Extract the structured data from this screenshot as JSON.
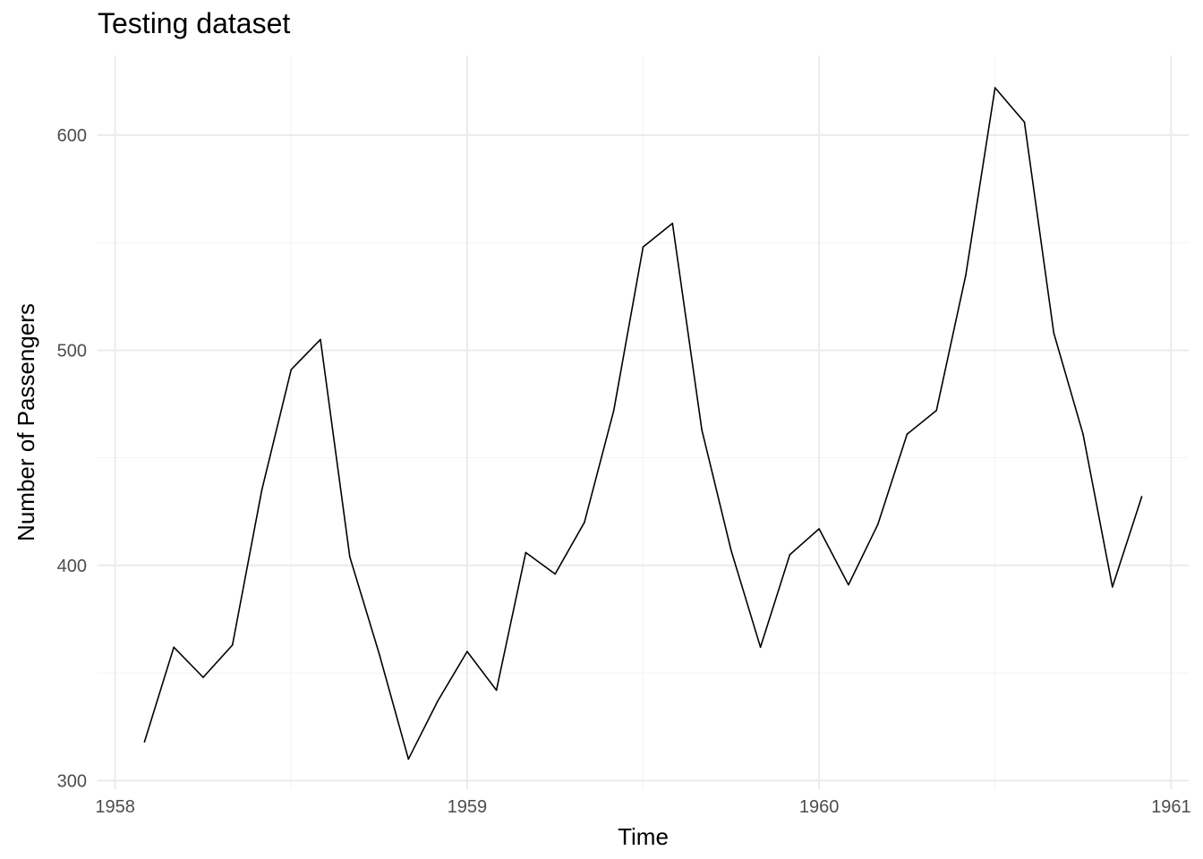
{
  "chart_data": {
    "type": "line",
    "title": "Testing dataset",
    "xlabel": "Time",
    "ylabel": "Number of Passengers",
    "xlim": [
      1957.95,
      1961.05
    ],
    "ylim": [
      296,
      637
    ],
    "x_ticks": [
      1958,
      1959,
      1960,
      1961
    ],
    "y_ticks": [
      300,
      400,
      500,
      600
    ],
    "grid": true,
    "series": [
      {
        "x": [
          1958.0833,
          1958.1667,
          1958.25,
          1958.3333,
          1958.4167,
          1958.5,
          1958.5833,
          1958.6667,
          1958.75,
          1958.8333,
          1958.9167,
          1959.0,
          1959.0833,
          1959.1667,
          1959.25,
          1959.3333,
          1959.4167,
          1959.5,
          1959.5833,
          1959.6667,
          1959.75,
          1959.8333,
          1959.9167,
          1960.0,
          1960.0833,
          1960.1667,
          1960.25,
          1960.3333,
          1960.4167,
          1960.5,
          1960.5833,
          1960.6667,
          1960.75,
          1960.8333,
          1960.9167
        ],
        "values": [
          318,
          362,
          348,
          363,
          435,
          491,
          505,
          404,
          359,
          310,
          337,
          360,
          342,
          406,
          396,
          420,
          472,
          548,
          559,
          463,
          407,
          362,
          405,
          417,
          391,
          419,
          461,
          472,
          535,
          622,
          606,
          508,
          461,
          390,
          432
        ]
      }
    ]
  }
}
